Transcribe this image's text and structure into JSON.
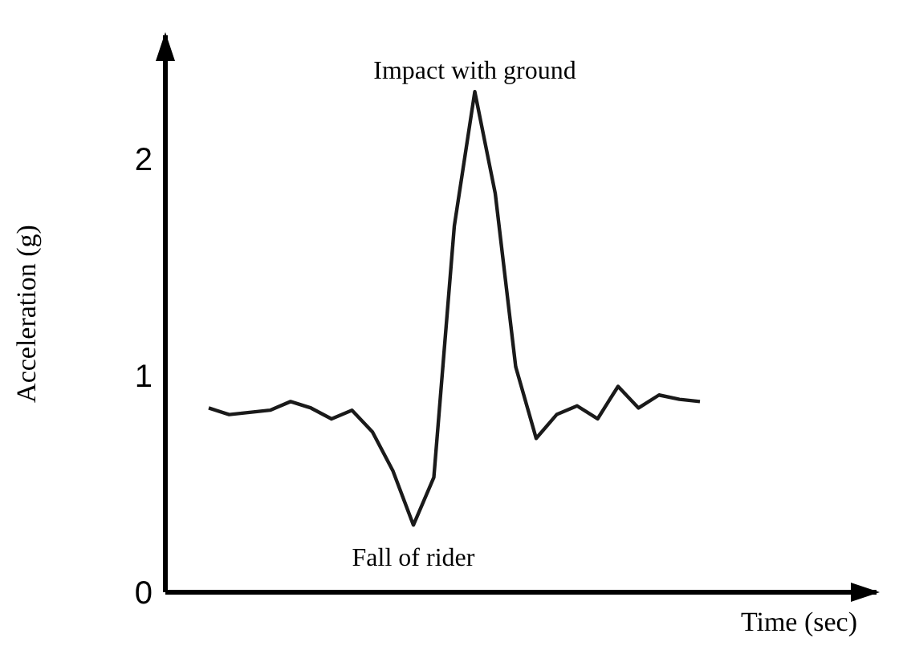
{
  "chart_data": {
    "type": "line",
    "ylabel": "Acceleration (g)",
    "xlabel": "Time (sec)",
    "categories": [
      null,
      null,
      null,
      null,
      null,
      null,
      null,
      null,
      null,
      null,
      null,
      null,
      null,
      null,
      null,
      null,
      null,
      null,
      null,
      null,
      null,
      null,
      null,
      null,
      null
    ],
    "series": [
      {
        "color": "#1a1a1a",
        "values": [
          0.85,
          0.82,
          0.83,
          0.84,
          0.88,
          0.85,
          0.8,
          0.84,
          0.74,
          0.56,
          0.31,
          0.53,
          1.69,
          2.31,
          1.84,
          1.04,
          0.71,
          0.82,
          0.86,
          0.8,
          0.95,
          0.85,
          0.91,
          0.89,
          0.88
        ]
      }
    ],
    "ylim": [
      0,
      2.57
    ],
    "yticks": [
      0,
      1,
      2
    ],
    "marker": "none",
    "line_style": "solid",
    "tick_labels": "y",
    "annotations": [
      {
        "text": "Impact with ground",
        "y": 2.31
      },
      {
        "text": "Fall of rider",
        "y": 0.31
      }
    ]
  }
}
